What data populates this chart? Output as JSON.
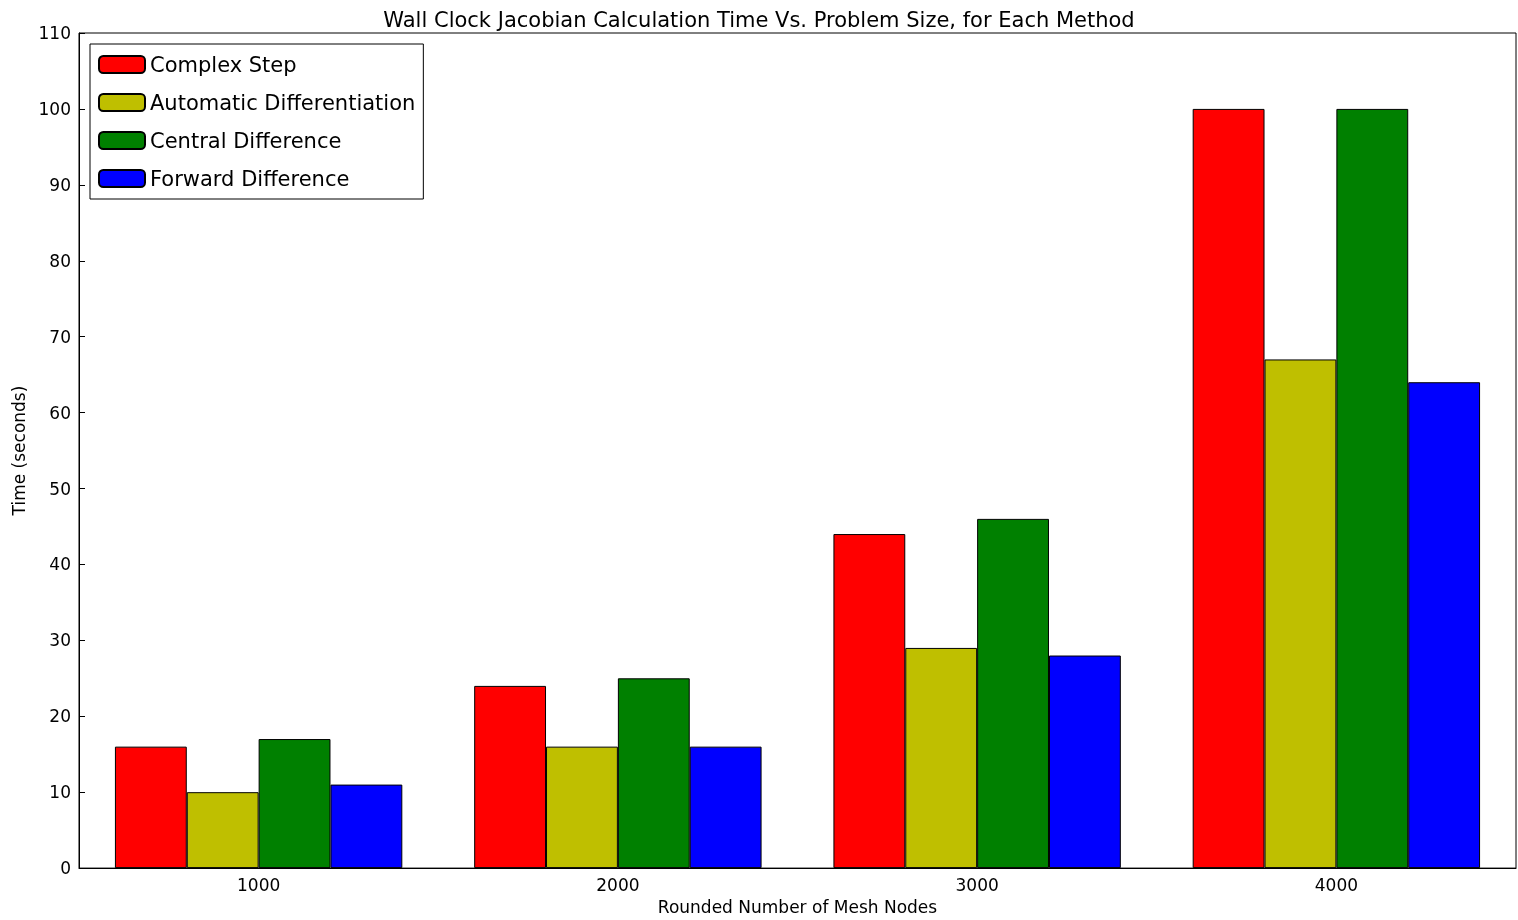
{
  "chart_data": {
    "type": "bar",
    "title": "Wall Clock Jacobian Calculation Time Vs. Problem Size, for Each Method",
    "xlabel": "Rounded Number of Mesh Nodes",
    "ylabel": "Time (seconds)",
    "categories": [
      "1000",
      "2000",
      "3000",
      "4000"
    ],
    "series": [
      {
        "name": "Complex Step",
        "color": "#ff0000",
        "values": [
          16,
          24,
          44,
          100
        ]
      },
      {
        "name": "Automatic Differentiation",
        "color": "#bfbf00",
        "values": [
          10,
          16,
          29,
          67
        ]
      },
      {
        "name": "Central Difference",
        "color": "#008000",
        "values": [
          17,
          25,
          46,
          100
        ]
      },
      {
        "name": "Forward Difference",
        "color": "#0000ff",
        "values": [
          11,
          16,
          28,
          64
        ]
      }
    ],
    "ylim": [
      0,
      110
    ],
    "yticks": [
      0,
      10,
      20,
      30,
      40,
      50,
      60,
      70,
      80,
      90,
      100,
      110
    ],
    "grid": false,
    "legend": "top left"
  }
}
